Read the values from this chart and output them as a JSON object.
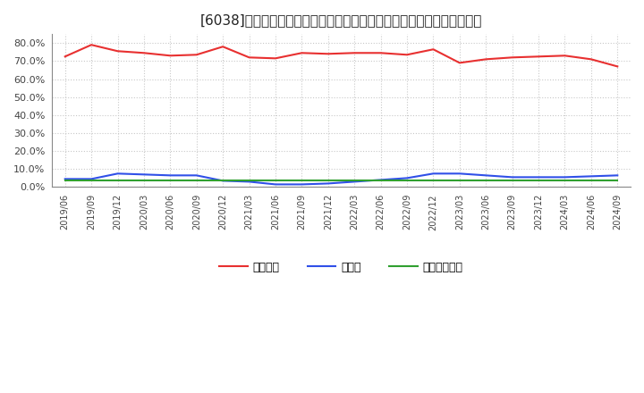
{
  "title": "[6038]　自己資本、のれん、繰延税金資産の総資産に対する比率の推移",
  "x_labels": [
    "2019/06",
    "2019/09",
    "2019/12",
    "2020/03",
    "2020/06",
    "2020/09",
    "2020/12",
    "2021/03",
    "2021/06",
    "2021/09",
    "2021/12",
    "2022/03",
    "2022/06",
    "2022/09",
    "2022/12",
    "2023/03",
    "2023/06",
    "2023/09",
    "2023/12",
    "2024/03",
    "2024/06",
    "2024/09"
  ],
  "jikoshihon": [
    72.5,
    79.0,
    75.5,
    74.5,
    73.0,
    73.5,
    78.0,
    72.0,
    71.5,
    74.5,
    74.0,
    74.5,
    74.5,
    73.5,
    76.5,
    69.0,
    71.0,
    72.0,
    72.5,
    73.0,
    71.0,
    67.0
  ],
  "noren": [
    4.5,
    4.5,
    7.5,
    7.0,
    6.5,
    6.5,
    3.5,
    3.0,
    1.5,
    1.5,
    2.0,
    3.0,
    4.0,
    5.0,
    7.5,
    7.5,
    6.5,
    5.5,
    5.5,
    5.5,
    6.0,
    6.5
  ],
  "kurinobe": [
    3.5,
    3.5,
    3.5,
    3.5,
    3.5,
    3.5,
    3.5,
    3.5,
    3.5,
    3.5,
    3.5,
    3.5,
    3.5,
    3.5,
    3.5,
    3.5,
    3.5,
    3.5,
    3.5,
    3.5,
    3.5,
    3.5
  ],
  "jikoshihon_color": "#e83030",
  "noren_color": "#3050e8",
  "kurinobe_color": "#30a030",
  "background_color": "#ffffff",
  "grid_color": "#c8c8c8",
  "ylim": [
    0,
    85
  ],
  "yticks": [
    0,
    10,
    20,
    30,
    40,
    50,
    60,
    70,
    80
  ],
  "legend_labels": [
    "自己資本",
    "のれん",
    "繰延税金資産"
  ],
  "title_fontsize": 11,
  "axis_fontsize": 8,
  "legend_fontsize": 9
}
